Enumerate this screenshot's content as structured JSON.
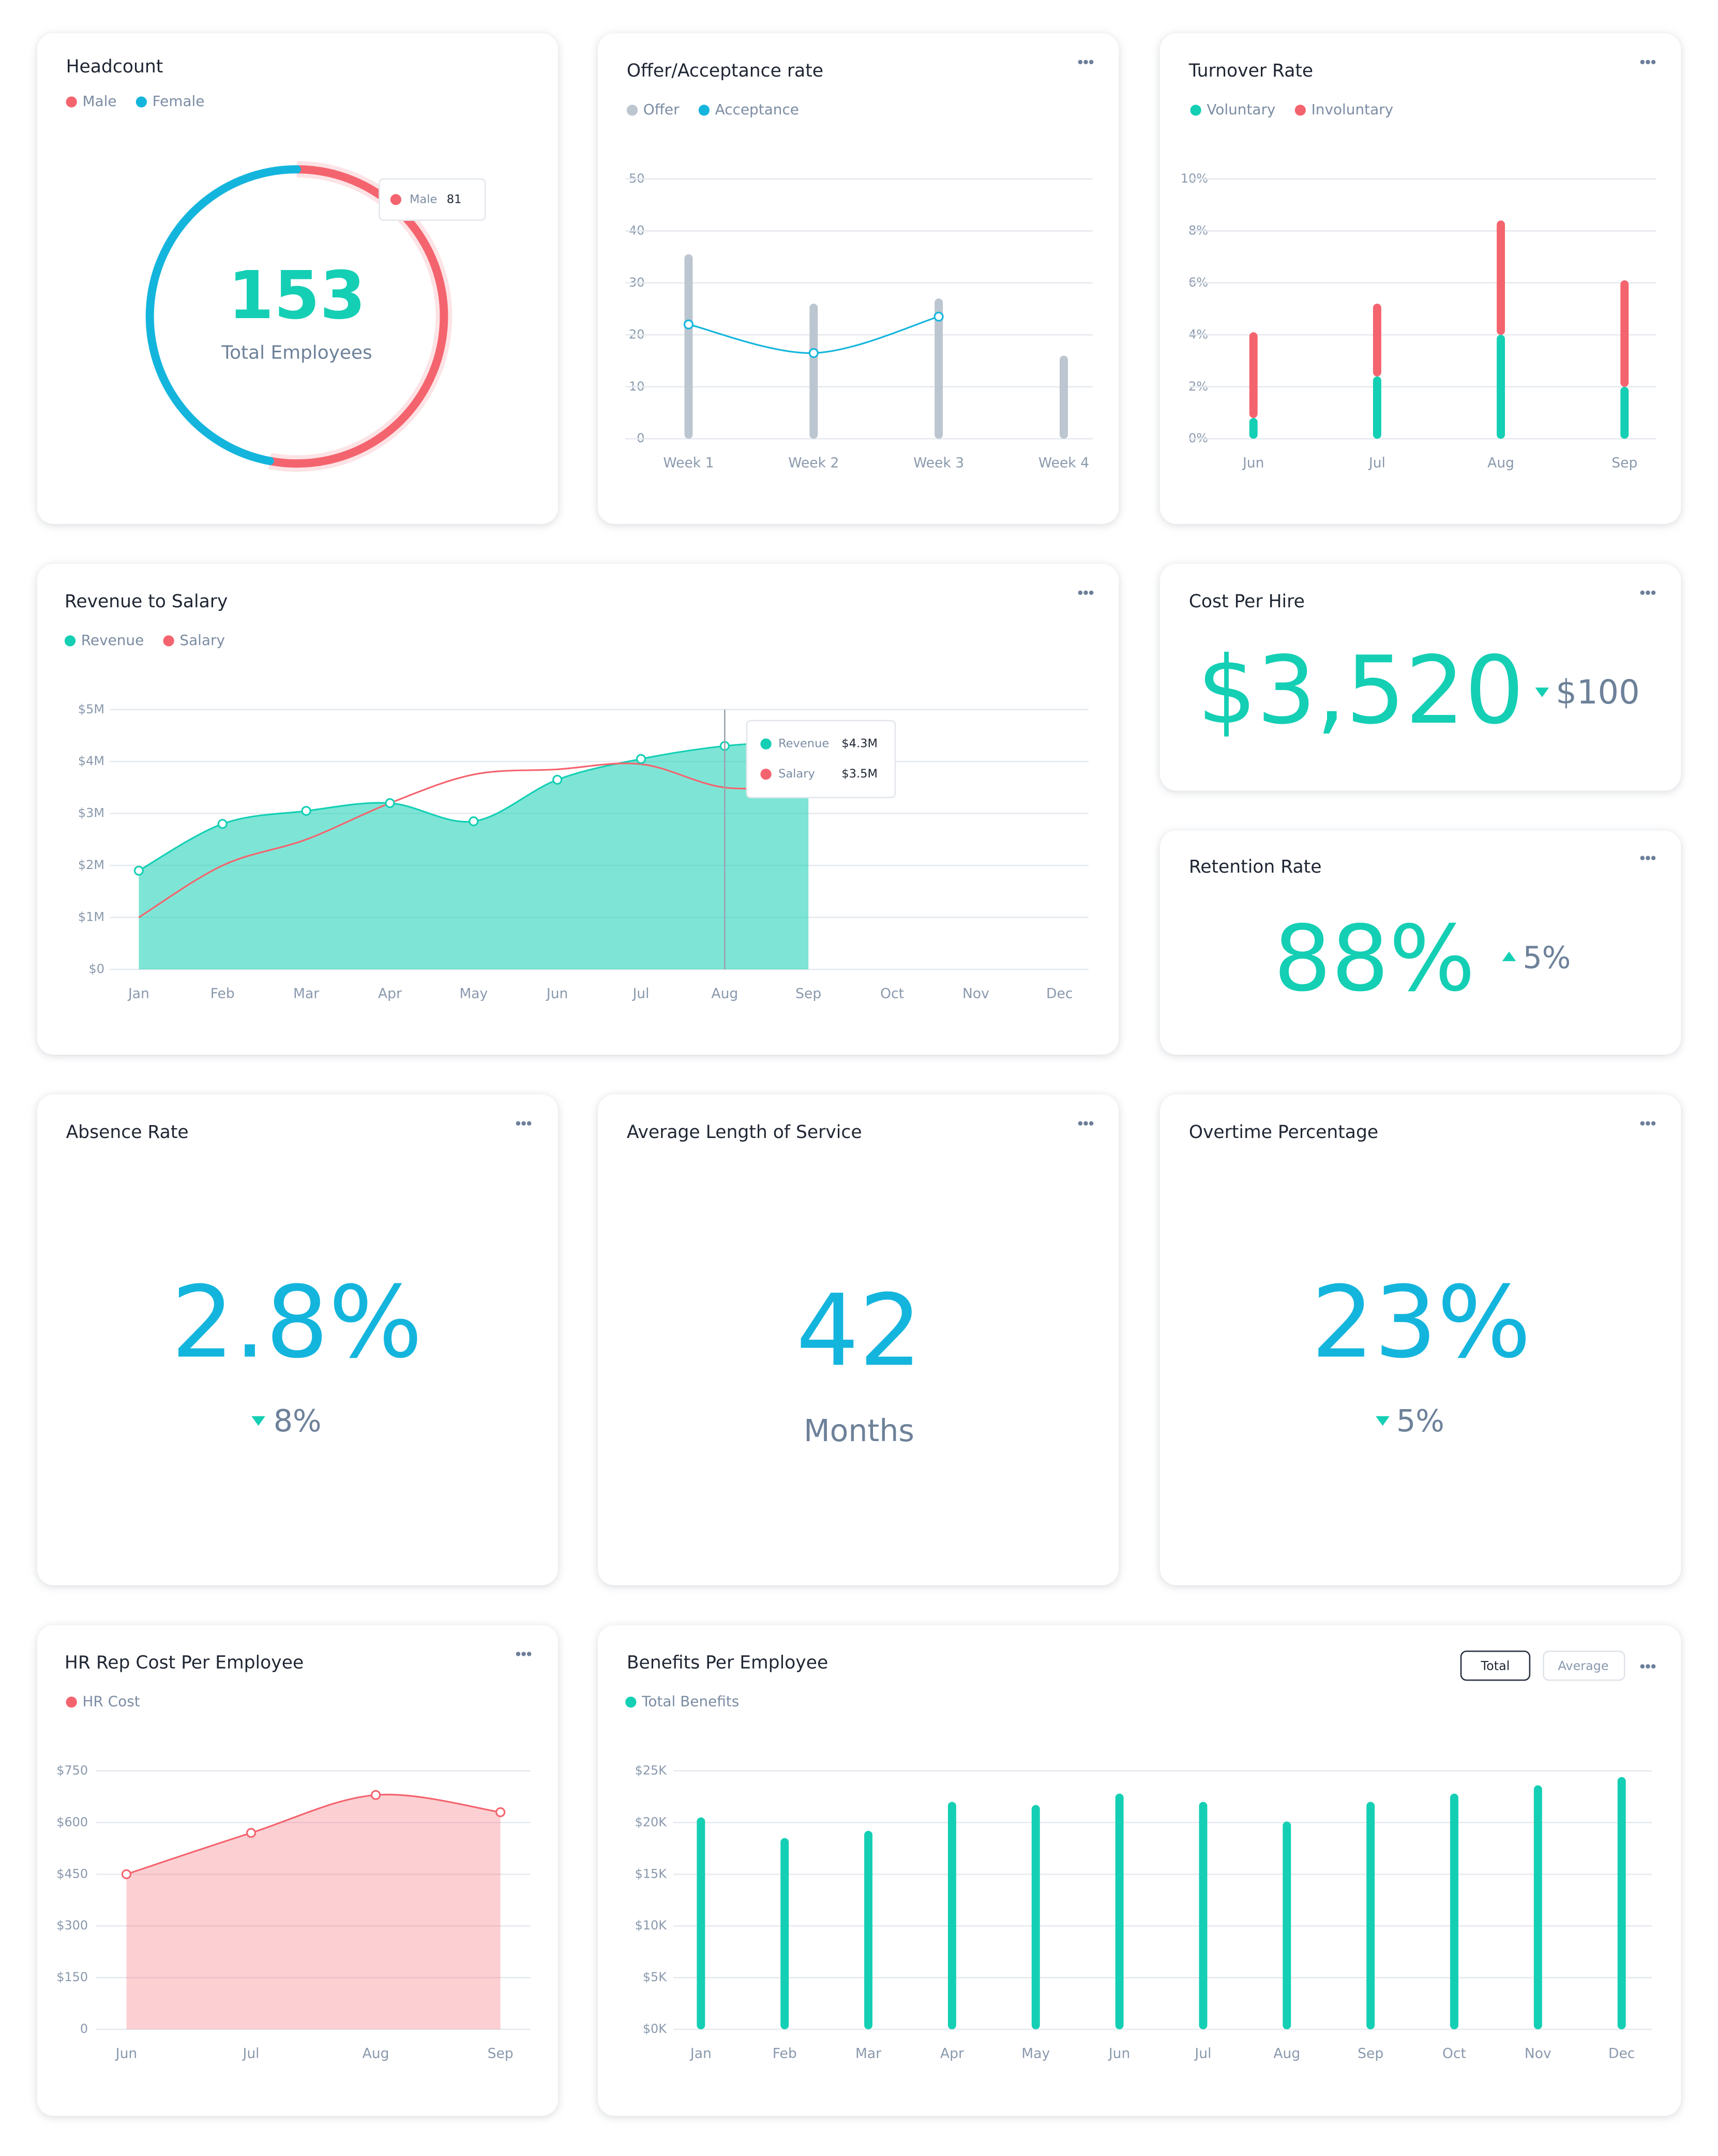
{
  "chart_data": [
    {
      "type": "donut",
      "title": "Headcount",
      "categories": [
        "Male",
        "Female"
      ],
      "values": [
        81,
        72
      ],
      "colors": [
        "#f4646e",
        "#14b5dd"
      ],
      "total": 153,
      "total_label": "Total Employees"
    },
    {
      "type": "bar",
      "title": "Offer/Acceptance rate",
      "categories": [
        "Week 1",
        "Week 2",
        "Week 3",
        "Week 4"
      ],
      "series": [
        {
          "name": "Offer",
          "color": "#bcc6d0",
          "values": [
            35.5,
            26,
            27,
            16
          ]
        },
        {
          "name": "Acceptance",
          "color": "#14b5dd",
          "type": "line",
          "values": [
            22,
            16.5,
            23.5,
            null
          ]
        }
      ],
      "ylim": [
        0,
        50
      ],
      "yticks": [
        0,
        10,
        20,
        30,
        40,
        50
      ],
      "grid": true
    },
    {
      "type": "stacked_bar",
      "title": "Turnover Rate",
      "categories": [
        "Jun",
        "Jul",
        "Aug",
        "Sep"
      ],
      "series": [
        {
          "name": "Voluntary",
          "color": "#14cfb4",
          "values": [
            0.8,
            2.4,
            4.0,
            2.0
          ]
        },
        {
          "name": "Involuntary",
          "color": "#f4646e",
          "values": [
            3.3,
            2.8,
            4.4,
            4.1
          ]
        }
      ],
      "ylim": [
        0,
        10
      ],
      "yticks": [
        {
          "value": 0,
          "label": "0%"
        },
        {
          "value": 2,
          "label": "2%"
        },
        {
          "value": 4,
          "label": "4%"
        },
        {
          "value": 6,
          "label": "6%"
        },
        {
          "value": 8,
          "label": "8%"
        },
        {
          "value": 10,
          "label": "10%"
        }
      ],
      "grid": true
    },
    {
      "type": "area",
      "title": "Revenue to Salary",
      "categories": [
        "Jan",
        "Feb",
        "Mar",
        "Apr",
        "May",
        "Jun",
        "Jul",
        "Aug",
        "Sep",
        "Oct",
        "Nov",
        "Dec"
      ],
      "series": [
        {
          "name": "Revenue",
          "color": "#14cfb4",
          "values": [
            1.9,
            2.8,
            3.05,
            3.2,
            2.85,
            3.65,
            4.05,
            4.3,
            4.4,
            null,
            null,
            null
          ],
          "value_labels": [
            null,
            null,
            null,
            null,
            null,
            null,
            null,
            "$4.3M",
            null,
            null,
            null,
            null
          ]
        },
        {
          "name": "Salary",
          "color": "#f4646e",
          "type": "line",
          "values": [
            1.0,
            2.0,
            2.5,
            3.2,
            3.75,
            3.85,
            3.95,
            3.5,
            3.55,
            null,
            null,
            null
          ],
          "value_labels": [
            null,
            null,
            null,
            null,
            null,
            null,
            null,
            "$3.5M",
            null,
            null,
            null,
            null
          ]
        }
      ],
      "ylim": [
        0,
        5
      ],
      "yticks": [
        {
          "value": 0,
          "label": "$0"
        },
        {
          "value": 1,
          "label": "$1M"
        },
        {
          "value": 2,
          "label": "$2M"
        },
        {
          "value": 3,
          "label": "$3M"
        },
        {
          "value": 4,
          "label": "$4M"
        },
        {
          "value": 5,
          "label": "$5M"
        }
      ],
      "grid": true
    },
    {
      "type": "area",
      "title": "HR Rep Cost Per Employee",
      "categories": [
        "Jun",
        "Jul",
        "Aug",
        "Sep"
      ],
      "series": [
        {
          "name": "HR Cost",
          "color": "#f4646e",
          "values": [
            450,
            570,
            680,
            630
          ]
        }
      ],
      "ylim": [
        0,
        750
      ],
      "yticks": [
        0,
        {
          "value": 150,
          "label": "$150"
        },
        {
          "value": 300,
          "label": "$300"
        },
        {
          "value": 450,
          "label": "$450"
        },
        {
          "value": 600,
          "label": "$600"
        },
        {
          "value": 750,
          "label": "$750"
        }
      ],
      "grid": true
    },
    {
      "type": "bar",
      "title": "Benefits Per Employee",
      "buttons": [
        "Total",
        "Average"
      ],
      "active_button": "Total",
      "categories": [
        "Jan",
        "Feb",
        "Mar",
        "Apr",
        "May",
        "Jun",
        "Jul",
        "Aug",
        "Sep",
        "Oct",
        "Nov",
        "Dec"
      ],
      "series": [
        {
          "name": "Total Benefits",
          "color": "#14cfb4",
          "values": [
            20.5,
            18.5,
            19.2,
            22,
            21.7,
            22.8,
            22,
            20.1,
            22,
            22.8,
            23.6,
            24.4
          ]
        }
      ],
      "ylim": [
        0,
        25
      ],
      "yticks": [
        {
          "value": 0,
          "label": "$0K"
        },
        {
          "value": 5,
          "label": "$5K"
        },
        {
          "value": 10,
          "label": "$10K"
        },
        {
          "value": 15,
          "label": "$15K"
        },
        {
          "value": 20,
          "label": "$20K"
        },
        {
          "value": 25,
          "label": "$25K"
        }
      ],
      "grid": true
    }
  ],
  "kpis": [
    {
      "title": "Cost Per Hire",
      "value": "$3,520",
      "change": "$100",
      "trend": "down"
    },
    {
      "title": "Retention Rate",
      "value": "88%",
      "change": "5%",
      "trend": "up"
    },
    {
      "title": "Absence Rate",
      "value": "2.8%",
      "change": "8%",
      "trend": "down"
    },
    {
      "title": "Average Length of Service",
      "value": "42",
      "unit": "Months"
    },
    {
      "title": "Overtime Percentage",
      "value": "23%",
      "change": "5%",
      "trend": "down"
    }
  ]
}
